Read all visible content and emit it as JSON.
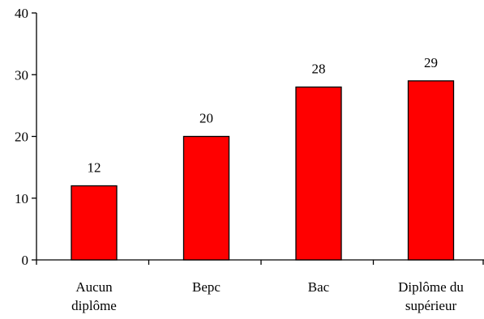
{
  "chart_data": {
    "type": "bar",
    "categories": [
      [
        "Aucun",
        "diplôme"
      ],
      [
        "Bepc"
      ],
      [
        "Bac"
      ],
      [
        "Diplôme du",
        "supérieur"
      ]
    ],
    "values": [
      12,
      20,
      28,
      29
    ],
    "data_labels": [
      "12",
      "20",
      "28",
      "29"
    ],
    "ylim": [
      0,
      40
    ],
    "yticks": [
      0,
      10,
      20,
      30,
      40
    ],
    "ytick_labels": [
      "0",
      "10",
      "20",
      "30",
      "40"
    ],
    "bar_color": "#ff0000",
    "bar_edge_color": "#000000",
    "grid": false,
    "title": "",
    "xlabel": "",
    "ylabel": ""
  }
}
